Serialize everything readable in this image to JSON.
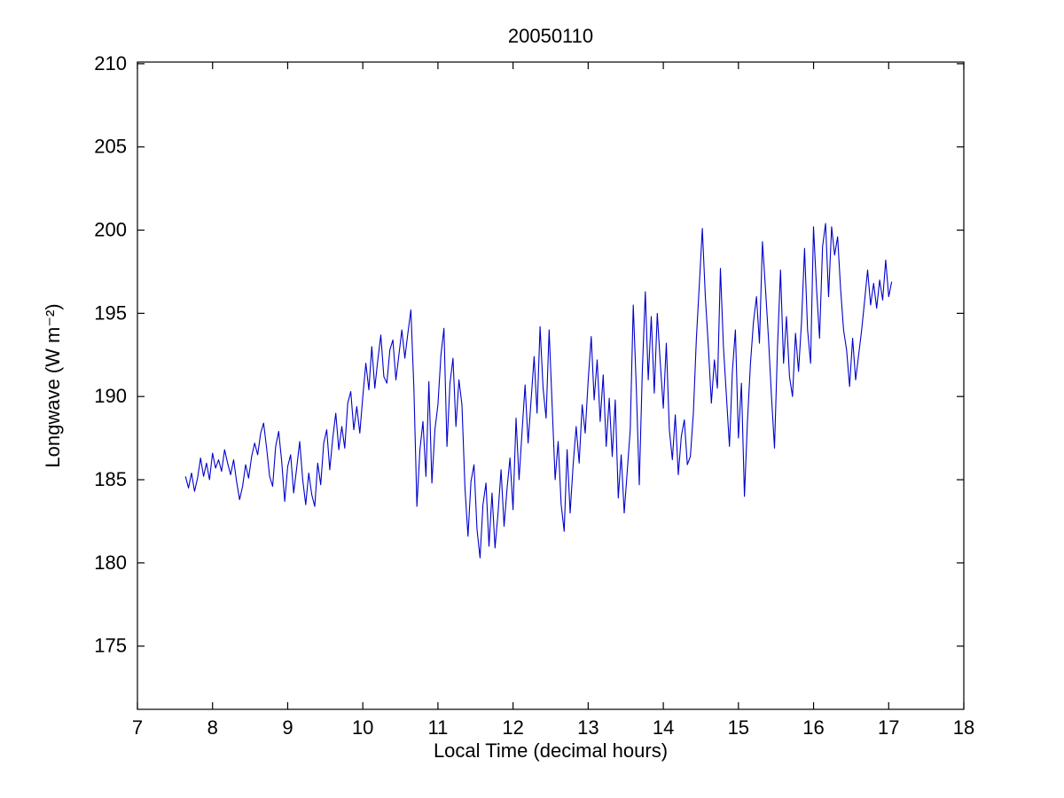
{
  "figure": {
    "background": "#ffffff",
    "axis_color": "#000000"
  },
  "chart_data": {
    "type": "line",
    "title": "20050110",
    "xlabel": "Local Time (decimal hours)",
    "ylabel": "Longwave (W m⁻²)",
    "xlim": [
      7,
      18
    ],
    "ylim": [
      171.2,
      210.1
    ],
    "xticks": [
      7,
      8,
      9,
      10,
      11,
      12,
      13,
      14,
      15,
      16,
      17,
      18
    ],
    "yticks": [
      175,
      180,
      185,
      190,
      195,
      200,
      205,
      210
    ],
    "grid": false,
    "legend_position": "none",
    "line_color": "#0000cc",
    "series": [
      {
        "name": "longwave",
        "x_start": 7.64,
        "x_step": 0.04,
        "values": [
          185.2,
          184.5,
          185.4,
          184.3,
          185.1,
          186.3,
          185.2,
          186.0,
          185.0,
          186.6,
          185.7,
          186.2,
          185.5,
          186.8,
          186.0,
          185.3,
          186.2,
          184.9,
          183.8,
          184.6,
          185.9,
          185.1,
          186.4,
          187.2,
          186.5,
          187.8,
          188.4,
          186.9,
          185.2,
          184.6,
          187.0,
          187.9,
          186.1,
          183.7,
          185.8,
          186.5,
          184.2,
          185.7,
          187.3,
          185.0,
          183.5,
          185.4,
          184.1,
          183.4,
          186.0,
          184.7,
          187.2,
          188.0,
          185.6,
          187.5,
          189.0,
          186.8,
          188.2,
          186.9,
          189.6,
          190.3,
          188.0,
          189.4,
          187.8,
          190.0,
          192.0,
          190.4,
          193.0,
          190.5,
          192.2,
          193.7,
          191.2,
          190.8,
          192.8,
          193.4,
          191.0,
          192.5,
          194.0,
          192.3,
          193.8,
          195.2,
          190.5,
          183.4,
          186.8,
          188.5,
          185.2,
          190.9,
          184.8,
          188.0,
          189.5,
          192.5,
          194.1,
          187.0,
          190.8,
          192.3,
          188.2,
          191.0,
          189.5,
          184.5,
          181.6,
          184.9,
          185.9,
          182.0,
          180.3,
          183.5,
          184.8,
          181.0,
          184.2,
          180.9,
          183.0,
          185.6,
          182.2,
          184.5,
          186.3,
          183.2,
          188.7,
          185.0,
          187.9,
          190.7,
          187.2,
          189.8,
          192.4,
          189.0,
          194.2,
          190.5,
          188.7,
          194.0,
          189.5,
          185.0,
          187.3,
          183.5,
          181.9,
          186.8,
          183.0,
          185.9,
          188.2,
          186.0,
          189.5,
          187.8,
          191.0,
          193.6,
          189.8,
          192.2,
          188.5,
          191.3,
          187.0,
          189.9,
          186.4,
          189.8,
          183.9,
          186.5,
          183.0,
          185.5,
          188.0,
          195.5,
          190.6,
          184.7,
          191.5,
          196.3,
          191.0,
          194.8,
          190.2,
          195.0,
          192.0,
          189.3,
          193.2,
          188.0,
          186.2,
          188.9,
          185.3,
          187.6,
          188.6,
          185.9,
          186.4,
          189.0,
          193.5,
          196.8,
          200.1,
          196.0,
          193.0,
          189.6,
          192.2,
          190.5,
          197.7,
          193.0,
          190.0,
          187.0,
          191.5,
          194.0,
          187.5,
          190.8,
          184.0,
          188.5,
          192.0,
          194.5,
          196.0,
          193.2,
          199.3,
          196.5,
          193.5,
          190.0,
          186.9,
          193.0,
          197.6,
          192.0,
          194.8,
          191.2,
          190.0,
          193.8,
          191.5,
          194.5,
          198.9,
          194.0,
          192.0,
          200.2,
          196.5,
          193.5,
          199.0,
          200.4,
          196.0,
          200.2,
          198.5,
          199.6,
          196.5,
          194.0,
          192.8,
          190.6,
          193.5,
          191.0,
          192.5,
          194.0,
          195.8,
          197.6,
          195.5,
          196.8,
          195.3,
          197.0,
          195.8,
          198.2,
          196.0,
          196.9
        ]
      }
    ]
  }
}
